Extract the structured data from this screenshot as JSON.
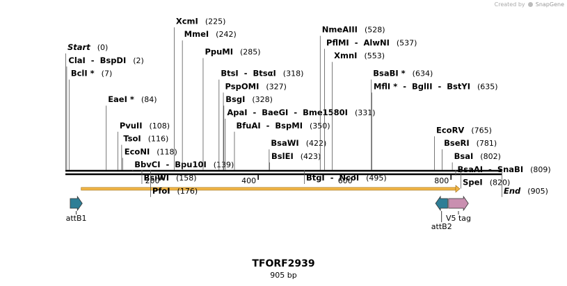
{
  "credit": {
    "prefix": "Created by",
    "brand": "SnapGene"
  },
  "construct": {
    "name": "TFORF2939",
    "length_label": "905 bp",
    "length": 905
  },
  "colors": {
    "attb": "#2e7e96",
    "v5": "#c98fb0",
    "orf": "#f2b648"
  },
  "ruler": {
    "ticks": [
      {
        "pos": 200,
        "label": "200"
      },
      {
        "pos": 400,
        "label": "400"
      },
      {
        "pos": 600,
        "label": "600"
      },
      {
        "pos": 800,
        "label": "800"
      }
    ]
  },
  "orf": {
    "start": 1,
    "end": 905,
    "direction": "forward"
  },
  "features": [
    {
      "name": "attB1",
      "start": 10,
      "end": 35,
      "direction": "forward",
      "type": "attb"
    },
    {
      "name": "attB2",
      "start": 768,
      "end": 793,
      "direction": "reverse",
      "type": "attb"
    },
    {
      "name": "V5 tag",
      "start": 795,
      "end": 836,
      "direction": "forward",
      "type": "v5"
    }
  ],
  "sites": [
    {
      "label": "Start",
      "pos": 0,
      "pos_label": "(0)",
      "italic": true,
      "row": 0
    },
    {
      "label": "ClaI  -  BspDI",
      "pos": 2,
      "pos_label": "(2)",
      "row": 1
    },
    {
      "label": "BclI *",
      "pos": 7,
      "pos_label": "(7)",
      "row": 2
    },
    {
      "label": "EaeI *",
      "pos": 84,
      "pos_label": "(84)",
      "row": 4
    },
    {
      "label": "PvuII",
      "pos": 108,
      "pos_label": "(108)",
      "row": 6
    },
    {
      "label": "TsoI",
      "pos": 116,
      "pos_label": "(116)",
      "row": 7
    },
    {
      "label": "EcoNI",
      "pos": 118,
      "pos_label": "(118)",
      "row": 8
    },
    {
      "label": "BbvCI  -  Bpu10I",
      "pos": 139,
      "pos_label": "(139)",
      "row": 9
    },
    {
      "label": "BsiWI",
      "pos": 158,
      "pos_label": "(158)",
      "row": 10
    },
    {
      "label": "PfoI",
      "pos": 176,
      "pos_label": "(176)",
      "row": 11
    },
    {
      "label": "XcmI",
      "pos": 225,
      "pos_label": "(225)",
      "row": -2
    },
    {
      "label": "MmeI",
      "pos": 242,
      "pos_label": "(242)",
      "row": -1
    },
    {
      "label": "PpuMI",
      "pos": 285,
      "pos_label": "(285)",
      "row": 0.35
    },
    {
      "label": "BtsI  -  BtsαI",
      "pos": 318,
      "pos_label": "(318)",
      "row": 2
    },
    {
      "label": "PspOMI",
      "pos": 327,
      "pos_label": "(327)",
      "row": 3
    },
    {
      "label": "BsgI",
      "pos": 328,
      "pos_label": "(328)",
      "row": 4
    },
    {
      "label": "ApaI  -  BaeGI  -  Bme1580I",
      "pos": 331,
      "pos_label": "(331)",
      "row": 5
    },
    {
      "label": "BfuAI  -  BspMI",
      "pos": 350,
      "pos_label": "(350)",
      "row": 6
    },
    {
      "label": "BsaWI",
      "pos": 422,
      "pos_label": "(422)",
      "row": 7.35
    },
    {
      "label": "BslEI",
      "pos": 423,
      "pos_label": "(423)",
      "row": 8.35
    },
    {
      "label": "BtgI  -  NcoI",
      "pos": 495,
      "pos_label": "(495)",
      "row": 10
    },
    {
      "label": "NmeAIII",
      "pos": 528,
      "pos_label": "(528)",
      "row": -1.35
    },
    {
      "label": "PflMI  -  AlwNI",
      "pos": 537,
      "pos_label": "(537)",
      "row": -0.35
    },
    {
      "label": "XmnI",
      "pos": 553,
      "pos_label": "(553)",
      "row": 0.65
    },
    {
      "label": "BsaBI *",
      "pos": 634,
      "pos_label": "(634)",
      "row": 2
    },
    {
      "label": "MflI *  -  BglII  -  BstYI",
      "pos": 635,
      "pos_label": "(635)",
      "row": 3
    },
    {
      "label": "EcoRV",
      "pos": 765,
      "pos_label": "(765)",
      "row": 6.35
    },
    {
      "label": "BseRI",
      "pos": 781,
      "pos_label": "(781)",
      "row": 7.35
    },
    {
      "label": "BsaI",
      "pos": 802,
      "pos_label": "(802)",
      "row": 8.35
    },
    {
      "label": "BsaAI  -  SnaBI",
      "pos": 809,
      "pos_label": "(809)",
      "row": 9.35
    },
    {
      "label": "SpeI",
      "pos": 820,
      "pos_label": "(820)",
      "row": 10.35
    },
    {
      "label": "End",
      "pos": 905,
      "pos_label": "(905)",
      "italic": true,
      "row": 11
    }
  ]
}
